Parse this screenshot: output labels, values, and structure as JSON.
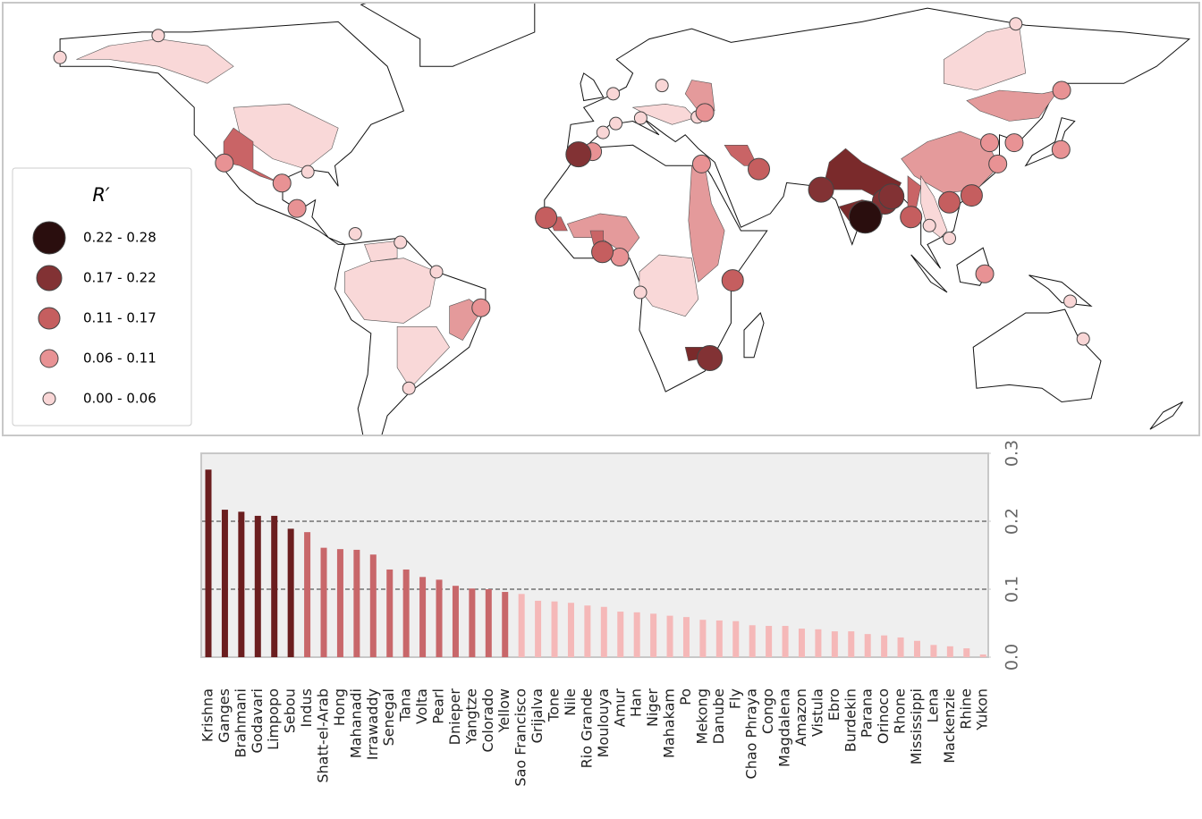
{
  "chart_data": [
    {
      "type": "map",
      "legend_title": "R′",
      "legend": [
        {
          "label": "0.22 - 0.28",
          "range": [
            0.22,
            0.28
          ],
          "color": "#2a0e0e"
        },
        {
          "label": "0.17 - 0.22",
          "range": [
            0.17,
            0.22
          ],
          "color": "#823234"
        },
        {
          "label": "0.11 - 0.17",
          "range": [
            0.11,
            0.17
          ],
          "color": "#c55e5f"
        },
        {
          "label": "0.06 - 0.11",
          "range": [
            0.06,
            0.11
          ],
          "color": "#e89294"
        },
        {
          "label": "0.00 - 0.06",
          "range": [
            0.0,
            0.06
          ],
          "color": "#f9d6d6"
        }
      ]
    },
    {
      "type": "bar",
      "categories": [
        "Krishna",
        "Ganges",
        "Brahmani",
        "Godavari",
        "Limpopo",
        "Sebou",
        "Indus",
        "Shatt-el-Arab",
        "Hong",
        "Mahanadi",
        "Irrawaddy",
        "Senegal",
        "Tana",
        "Volta",
        "Pearl",
        "Dnieper",
        "Yangtze",
        "Colorado",
        "Yellow",
        "Sao Francisco",
        "Grijalva",
        "Tone",
        "Nile",
        "Rio Grande",
        "Moulouya",
        "Amur",
        "Han",
        "Niger",
        "Mahakam",
        "Po",
        "Mekong",
        "Danube",
        "Fly",
        "Chao Phraya",
        "Congo",
        "Magdalena",
        "Amazon",
        "Vistula",
        "Ebro",
        "Burdekin",
        "Parana",
        "Orinoco",
        "Rhone",
        "Mississippi",
        "Lena",
        "Mackenzie",
        "Rhine",
        "Yukon"
      ],
      "values": [
        0.276,
        0.217,
        0.214,
        0.208,
        0.208,
        0.189,
        0.184,
        0.161,
        0.159,
        0.158,
        0.151,
        0.129,
        0.129,
        0.118,
        0.114,
        0.105,
        0.101,
        0.1,
        0.096,
        0.093,
        0.083,
        0.082,
        0.08,
        0.076,
        0.074,
        0.067,
        0.066,
        0.064,
        0.061,
        0.059,
        0.055,
        0.054,
        0.053,
        0.047,
        0.046,
        0.046,
        0.042,
        0.041,
        0.038,
        0.038,
        0.034,
        0.032,
        0.029,
        0.024,
        0.018,
        0.016,
        0.013,
        0.004
      ],
      "colors": [
        "#6b1e1f",
        "#6b1e1f",
        "#6b1e1f",
        "#6b1e1f",
        "#6b1e1f",
        "#6b1e1f",
        "#c8676a",
        "#c8676a",
        "#c8676a",
        "#c8676a",
        "#c8676a",
        "#c8676a",
        "#c8676a",
        "#c8676a",
        "#c8676a",
        "#c8676a",
        "#c8676a",
        "#c8676a",
        "#c8676a",
        "#f5b8b8",
        "#f5b8b8",
        "#f5b8b8",
        "#f5b8b8",
        "#f5b8b8",
        "#f5b8b8",
        "#f5b8b8",
        "#f5b8b8",
        "#f5b8b8",
        "#f5b8b8",
        "#f5b8b8",
        "#f5b8b8",
        "#f5b8b8",
        "#f5b8b8",
        "#f5b8b8",
        "#f5b8b8",
        "#f5b8b8",
        "#f5b8b8",
        "#f5b8b8",
        "#f5b8b8",
        "#f5b8b8",
        "#f5b8b8",
        "#f5b8b8",
        "#f5b8b8",
        "#f5b8b8",
        "#f5b8b8",
        "#f5b8b8",
        "#f5b8b8",
        "#f5b8b8"
      ],
      "ylim": [
        0,
        0.3
      ],
      "yticks": [
        {
          "value": 0,
          "label": "0.0"
        },
        0.1,
        0.2,
        0.3
      ],
      "reference_lines": [
        0.1,
        0.2
      ]
    }
  ]
}
